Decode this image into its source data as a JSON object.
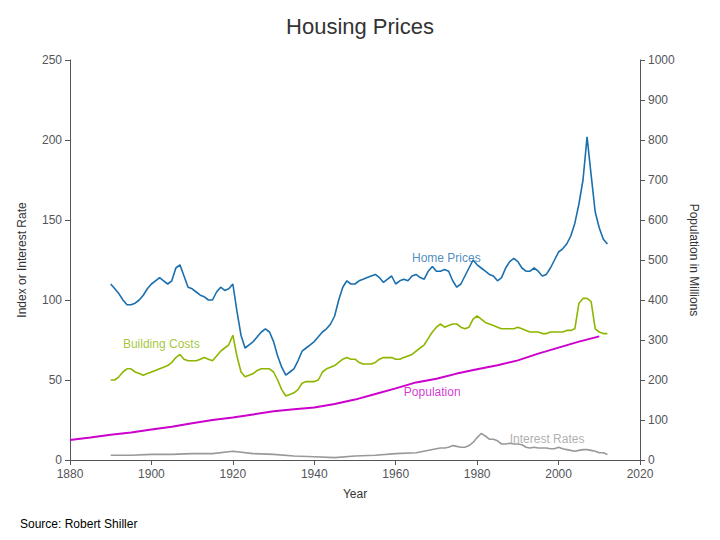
{
  "chart_data": {
    "type": "line",
    "title": "Housing Prices",
    "source": "Source: Robert Shiller",
    "xlabel": "Year",
    "ylabel": "Index or Interest Rate",
    "y2label": "Population in Millions",
    "xlim": [
      1880,
      2020
    ],
    "xticks": [
      1880,
      1900,
      1920,
      1940,
      1960,
      1980,
      2000,
      2020
    ],
    "ylim": [
      0,
      250
    ],
    "yticks": [
      0,
      50,
      100,
      150,
      200,
      250
    ],
    "y2lim": [
      0,
      1000
    ],
    "y2ticks": [
      0,
      100,
      200,
      300,
      400,
      500,
      600,
      700,
      800,
      900,
      1000
    ],
    "grid": false,
    "series": [
      {
        "color": "#cc00cc",
        "axis": "y2",
        "x": [
          1880,
          1885,
          1890,
          1895,
          1900,
          1905,
          1910,
          1915,
          1920,
          1925,
          1930,
          1935,
          1940,
          1945,
          1950,
          1955,
          1960,
          1965,
          1970,
          1975,
          1980,
          1985,
          1990,
          1995,
          2000,
          2005,
          2010
        ],
        "values": [
          50,
          56,
          63,
          69,
          76,
          83,
          92,
          100,
          106,
          114,
          122,
          127,
          131,
          140,
          151,
          165,
          179,
          194,
          203,
          216,
          227,
          237,
          249,
          266,
          281,
          296,
          309
        ]
      },
      {
        "color": "#1a6faf",
        "axis": "y",
        "x": [
          1890,
          1891,
          1892,
          1893,
          1894,
          1895,
          1896,
          1897,
          1898,
          1899,
          1900,
          1901,
          1902,
          1903,
          1904,
          1905,
          1906,
          1907,
          1908,
          1909,
          1910,
          1911,
          1912,
          1913,
          1914,
          1915,
          1916,
          1917,
          1918,
          1919,
          1920,
          1921,
          1922,
          1923,
          1924,
          1925,
          1926,
          1927,
          1928,
          1929,
          1930,
          1931,
          1932,
          1933,
          1934,
          1935,
          1936,
          1937,
          1938,
          1939,
          1940,
          1941,
          1942,
          1943,
          1944,
          1945,
          1946,
          1947,
          1948,
          1949,
          1950,
          1951,
          1952,
          1953,
          1954,
          1955,
          1956,
          1957,
          1958,
          1959,
          1960,
          1961,
          1962,
          1963,
          1964,
          1965,
          1966,
          1967,
          1968,
          1969,
          1970,
          1971,
          1972,
          1973,
          1974,
          1975,
          1976,
          1977,
          1978,
          1979,
          1980,
          1981,
          1982,
          1983,
          1984,
          1985,
          1986,
          1987,
          1988,
          1989,
          1990,
          1991,
          1992,
          1993,
          1994,
          1995,
          1996,
          1997,
          1998,
          1999,
          2000,
          2001,
          2002,
          2003,
          2004,
          2005,
          2006,
          2007,
          2008,
          2009,
          2010,
          2011,
          2012
        ],
        "values": [
          110,
          107,
          104,
          100,
          97,
          97,
          98,
          100,
          103,
          107,
          110,
          112,
          114,
          112,
          110,
          112,
          120,
          122,
          115,
          108,
          107,
          105,
          103,
          102,
          100,
          100,
          105,
          108,
          106,
          107,
          110,
          93,
          78,
          70,
          72,
          74,
          77,
          80,
          82,
          80,
          74,
          65,
          58,
          53,
          55,
          57,
          62,
          68,
          70,
          72,
          74,
          77,
          80,
          82,
          85,
          90,
          100,
          108,
          112,
          110,
          110,
          112,
          113,
          114,
          115,
          116,
          114,
          111,
          113,
          115,
          110,
          112,
          113,
          112,
          115,
          116,
          114,
          113,
          118,
          121,
          118,
          118,
          119,
          118,
          112,
          108,
          110,
          115,
          120,
          125,
          122,
          120,
          118,
          116,
          115,
          112,
          114,
          120,
          124,
          126,
          124,
          120,
          118,
          118,
          120,
          118,
          115,
          116,
          120,
          125,
          130,
          132,
          135,
          140,
          148,
          160,
          175,
          202,
          178,
          155,
          145,
          138,
          135
        ]
      },
      {
        "color": "#8db600",
        "axis": "y",
        "x": [
          1890,
          1891,
          1892,
          1893,
          1894,
          1895,
          1896,
          1897,
          1898,
          1899,
          1900,
          1901,
          1902,
          1903,
          1904,
          1905,
          1906,
          1907,
          1908,
          1909,
          1910,
          1911,
          1912,
          1913,
          1914,
          1915,
          1916,
          1917,
          1918,
          1919,
          1920,
          1921,
          1922,
          1923,
          1924,
          1925,
          1926,
          1927,
          1928,
          1929,
          1930,
          1931,
          1932,
          1933,
          1934,
          1935,
          1936,
          1937,
          1938,
          1939,
          1940,
          1941,
          1942,
          1943,
          1944,
          1945,
          1946,
          1947,
          1948,
          1949,
          1950,
          1951,
          1952,
          1953,
          1954,
          1955,
          1956,
          1957,
          1958,
          1959,
          1960,
          1961,
          1962,
          1963,
          1964,
          1965,
          1966,
          1967,
          1968,
          1969,
          1970,
          1971,
          1972,
          1973,
          1974,
          1975,
          1976,
          1977,
          1978,
          1979,
          1980,
          1981,
          1982,
          1983,
          1984,
          1985,
          1986,
          1987,
          1988,
          1989,
          1990,
          1991,
          1992,
          1993,
          1994,
          1995,
          1996,
          1997,
          1998,
          1999,
          2000,
          2001,
          2002,
          2003,
          2004,
          2005,
          2006,
          2007,
          2008,
          2009,
          2010,
          2011,
          2012
        ],
        "values": [
          50,
          50,
          52,
          55,
          57,
          57,
          55,
          54,
          53,
          54,
          55,
          56,
          57,
          58,
          59,
          61,
          64,
          66,
          63,
          62,
          62,
          62,
          63,
          64,
          63,
          62,
          65,
          68,
          70,
          72,
          78,
          65,
          55,
          52,
          53,
          54,
          56,
          57,
          57,
          57,
          55,
          50,
          44,
          40,
          41,
          42,
          44,
          48,
          49,
          49,
          49,
          50,
          55,
          57,
          58,
          59,
          61,
          63,
          64,
          63,
          63,
          61,
          60,
          60,
          60,
          61,
          63,
          64,
          64,
          64,
          63,
          63,
          64,
          65,
          66,
          68,
          70,
          72,
          76,
          80,
          83,
          85,
          83,
          84,
          85,
          85,
          83,
          82,
          83,
          88,
          90,
          88,
          86,
          85,
          84,
          83,
          82,
          82,
          82,
          82,
          83,
          82,
          81,
          80,
          80,
          80,
          79,
          79,
          80,
          80,
          80,
          80,
          81,
          81,
          82,
          98,
          101,
          101,
          99,
          82,
          80,
          79,
          79
        ]
      },
      {
        "color": "#999999",
        "axis": "y",
        "x": [
          1890,
          1895,
          1900,
          1905,
          1910,
          1915,
          1920,
          1925,
          1930,
          1935,
          1940,
          1945,
          1950,
          1955,
          1960,
          1965,
          1970,
          1971,
          1972,
          1973,
          1974,
          1975,
          1976,
          1977,
          1978,
          1979,
          1980,
          1981,
          1982,
          1983,
          1984,
          1985,
          1986,
          1987,
          1988,
          1989,
          1990,
          1991,
          1992,
          1993,
          1994,
          1995,
          1996,
          1997,
          1998,
          1999,
          2000,
          2001,
          2002,
          2003,
          2004,
          2005,
          2006,
          2007,
          2008,
          2009,
          2010,
          2011,
          2012
        ],
        "values": [
          3,
          3,
          3.5,
          3.5,
          4,
          4,
          5.5,
          4,
          3.5,
          2.5,
          2,
          1.5,
          2.5,
          3,
          4,
          4.5,
          7,
          7.5,
          7.5,
          8,
          9,
          8.5,
          8,
          8,
          9,
          11,
          14,
          16.6,
          15,
          13,
          13,
          12,
          10,
          10,
          10.5,
          10,
          10,
          9.5,
          8,
          7.5,
          8,
          7.5,
          7.5,
          7.5,
          7,
          7,
          8,
          7,
          6.5,
          6,
          5.5,
          6,
          6.5,
          6.5,
          6,
          5.5,
          4.5,
          4.5,
          3.5
        ]
      }
    ],
    "annotations": [
      {
        "text": "Home Prices",
        "x": 1964,
        "y": 122,
        "color": "#1a6faf"
      },
      {
        "text": "Building Costs",
        "x": 1893,
        "y": 68,
        "color": "#8db600"
      },
      {
        "text": "Population",
        "x": 1962,
        "y": 38,
        "color": "#cc00cc"
      },
      {
        "text": "Interest Rates",
        "x": 1988,
        "y": 8.5,
        "color": "#999999"
      }
    ]
  }
}
